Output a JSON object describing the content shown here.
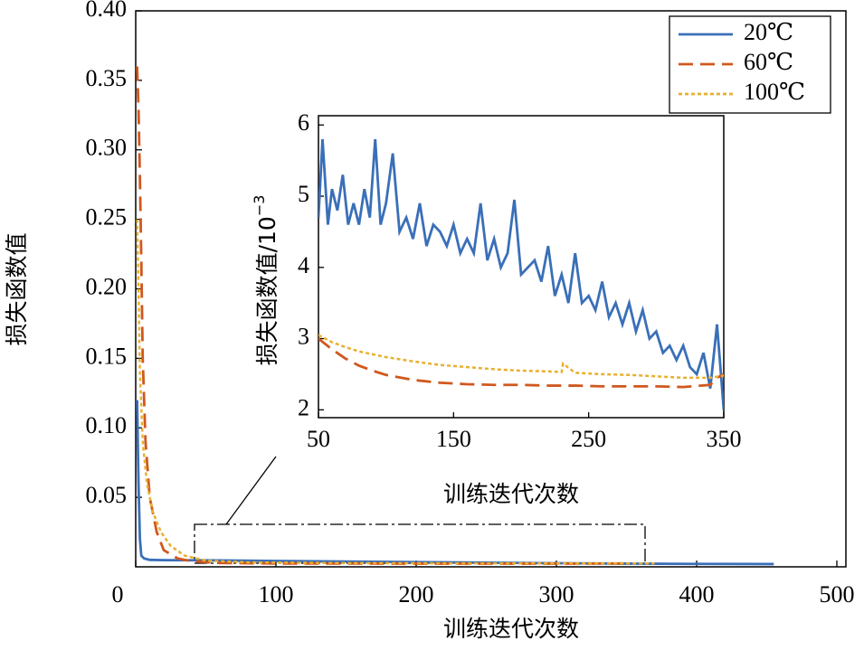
{
  "chart_data": [
    {
      "type": "line",
      "xlabel": "训练迭代次数",
      "ylabel": "损失函数值",
      "xlim": [
        0,
        500
      ],
      "ylim": [
        0,
        0.4
      ],
      "xticks": [
        0,
        100,
        200,
        300,
        400,
        500
      ],
      "yticks": [
        0.05,
        {
          "value": 0.1,
          "label": "0.10"
        },
        0.15,
        {
          "value": 0.2,
          "label": "0.20"
        },
        0.25,
        {
          "value": 0.3,
          "label": "0.30"
        },
        0.35,
        {
          "value": 0.4,
          "label": "0.40"
        }
      ],
      "legend": "upper right",
      "series": [
        {
          "name": "20℃",
          "color": "#3a6fb8",
          "style": "solid",
          "x": [
            1,
            2,
            3,
            4,
            6,
            10,
            20,
            40,
            60,
            100,
            150,
            200,
            250,
            300,
            350,
            400,
            455
          ],
          "values": [
            0.12,
            0.06,
            0.02,
            0.008,
            0.006,
            0.005,
            0.0048,
            0.0047,
            0.0046,
            0.0042,
            0.0038,
            0.0034,
            0.003,
            0.0026,
            0.0023,
            0.0021,
            0.002
          ]
        },
        {
          "name": "60℃",
          "color": "#d0581e",
          "style": "dashed",
          "x": [
            1,
            2,
            3,
            4,
            5,
            7,
            10,
            15,
            20,
            30,
            40,
            60,
            100,
            200,
            300,
            350
          ],
          "values": [
            0.36,
            0.33,
            0.28,
            0.22,
            0.15,
            0.09,
            0.05,
            0.025,
            0.012,
            0.006,
            0.004,
            0.0028,
            0.0024,
            0.0023,
            0.0023,
            0.0024
          ]
        },
        {
          "name": "100℃",
          "color": "#e8b030",
          "style": "dotted",
          "x": [
            1,
            2,
            3,
            5,
            8,
            12,
            18,
            25,
            35,
            50,
            80,
            150,
            250,
            350,
            370
          ],
          "values": [
            0.25,
            0.2,
            0.14,
            0.09,
            0.06,
            0.04,
            0.025,
            0.015,
            0.008,
            0.0045,
            0.0032,
            0.0027,
            0.0025,
            0.0025,
            0.0024
          ]
        }
      ]
    },
    {
      "type": "line",
      "xlabel": "训练迭代次数",
      "ylabel": "损失函数值/10",
      "ylabel_exponent": "−3",
      "xlim": [
        50,
        350
      ],
      "ylim": [
        1.89,
        6.13
      ],
      "xticks": [
        50,
        150,
        250,
        350
      ],
      "yticks": [
        2,
        3,
        4,
        5,
        6
      ],
      "series": [
        {
          "color": "#3a6fb8",
          "style": "solid",
          "x": [
            50,
            53,
            57,
            60,
            64,
            68,
            72,
            76,
            80,
            84,
            88,
            92,
            96,
            100,
            105,
            110,
            115,
            120,
            125,
            130,
            135,
            140,
            145,
            150,
            155,
            160,
            165,
            170,
            175,
            180,
            185,
            190,
            195,
            200,
            205,
            210,
            215,
            220,
            225,
            230,
            235,
            240,
            245,
            250,
            255,
            260,
            265,
            270,
            275,
            280,
            285,
            290,
            295,
            300,
            305,
            310,
            315,
            320,
            325,
            330,
            335,
            340,
            345,
            350
          ],
          "values": [
            4.7,
            5.8,
            4.6,
            5.1,
            4.8,
            5.3,
            4.6,
            4.9,
            4.6,
            5.1,
            4.7,
            5.8,
            4.6,
            4.9,
            5.6,
            4.5,
            4.7,
            4.4,
            4.9,
            4.3,
            4.6,
            4.5,
            4.3,
            4.6,
            4.2,
            4.4,
            4.2,
            4.9,
            4.1,
            4.4,
            4.0,
            4.2,
            4.95,
            3.9,
            4.0,
            4.1,
            3.8,
            4.3,
            3.6,
            3.9,
            3.5,
            4.2,
            3.5,
            3.6,
            3.4,
            3.8,
            3.3,
            3.5,
            3.2,
            3.5,
            3.1,
            3.4,
            3.0,
            3.1,
            2.8,
            2.9,
            2.7,
            2.9,
            2.6,
            2.5,
            2.8,
            2.3,
            3.2,
            2.0
          ]
        },
        {
          "color": "#d0581e",
          "style": "dashed",
          "x": [
            50,
            60,
            70,
            80,
            90,
            100,
            120,
            140,
            160,
            180,
            200,
            220,
            240,
            260,
            280,
            300,
            320,
            340,
            345,
            350
          ],
          "values": [
            3.0,
            2.85,
            2.72,
            2.62,
            2.55,
            2.49,
            2.42,
            2.38,
            2.36,
            2.35,
            2.35,
            2.34,
            2.34,
            2.33,
            2.33,
            2.33,
            2.32,
            2.35,
            2.45,
            2.5
          ]
        },
        {
          "color": "#e8b030",
          "style": "dotted",
          "x": [
            50,
            60,
            70,
            80,
            100,
            120,
            140,
            160,
            180,
            200,
            220,
            230,
            231,
            240,
            260,
            280,
            300,
            320,
            340,
            350
          ],
          "values": [
            3.05,
            2.95,
            2.88,
            2.82,
            2.74,
            2.68,
            2.63,
            2.6,
            2.57,
            2.55,
            2.54,
            2.53,
            2.65,
            2.52,
            2.5,
            2.49,
            2.47,
            2.45,
            2.45,
            2.48
          ]
        }
      ]
    }
  ]
}
